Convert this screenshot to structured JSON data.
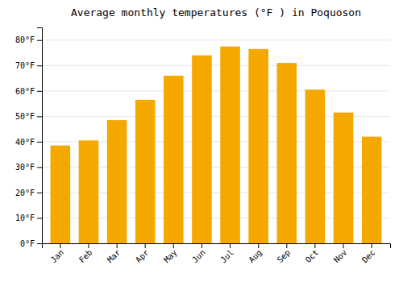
{
  "chart_data": {
    "type": "bar",
    "title": "Average monthly temperatures (°F ) in Poquoson",
    "categories": [
      "Jan",
      "Feb",
      "Mar",
      "Apr",
      "May",
      "Jun",
      "Jul",
      "Aug",
      "Sep",
      "Oct",
      "Nov",
      "Dec"
    ],
    "values": [
      38.5,
      40.5,
      48.5,
      56.5,
      66.0,
      74.0,
      77.5,
      76.5,
      71.0,
      60.5,
      51.5,
      42.0
    ],
    "color": "#F5A800",
    "ylim": [
      0,
      85
    ],
    "yticks": [
      {
        "value": 0,
        "label": "0°F"
      },
      {
        "value": 10,
        "label": "10°F"
      },
      {
        "value": 20,
        "label": "20°F"
      },
      {
        "value": 30,
        "label": "30°F"
      },
      {
        "value": 40,
        "label": "40°F"
      },
      {
        "value": 50,
        "label": "50°F"
      },
      {
        "value": 60,
        "label": "60°F"
      },
      {
        "value": 70,
        "label": "70°F"
      },
      {
        "value": 80,
        "label": "80°F"
      }
    ],
    "grid": true
  }
}
